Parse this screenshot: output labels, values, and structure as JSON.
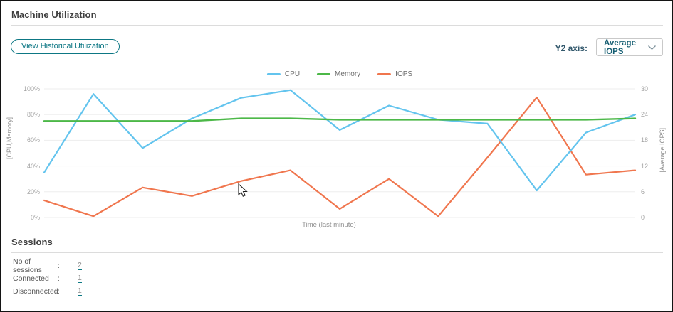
{
  "header": {
    "title": "Machine Utilization"
  },
  "toolbar": {
    "view_historical_label": "View Historical Utilization"
  },
  "y2_control": {
    "label": "Y2 axis:",
    "selected_option": "Average IOPS"
  },
  "chart_data": {
    "type": "line",
    "x": [
      1,
      2,
      3,
      4,
      5,
      6,
      7,
      8,
      9,
      10,
      11,
      12,
      13
    ],
    "xlabel": "Time (last minute)",
    "y1label": "[CPU,Memory]",
    "y2label": "[Average IOPS]",
    "y1lim": [
      0,
      100
    ],
    "y2lim": [
      0,
      30
    ],
    "y1_ticks": [
      "100%",
      "80%",
      "60%",
      "40%",
      "20%",
      "0%"
    ],
    "y2_ticks": [
      "30",
      "24",
      "18",
      "12",
      "6",
      "0"
    ],
    "grid": "horizontal",
    "legend_position": "top-center",
    "series": [
      {
        "name": "CPU",
        "axis": "y1",
        "color": "#63c4ee",
        "values": [
          35,
          96,
          54,
          77,
          93,
          99,
          68,
          87,
          76,
          73,
          21,
          66,
          80
        ]
      },
      {
        "name": "Memory",
        "axis": "y1",
        "color": "#4cb848",
        "values": [
          75,
          75,
          75,
          75,
          77,
          77,
          76,
          76,
          76,
          76,
          76,
          76,
          77
        ]
      },
      {
        "name": "IOPS",
        "axis": "y2",
        "color": "#f0764e",
        "values": [
          4,
          0.3,
          7,
          5,
          8.5,
          11,
          2,
          9,
          0.3,
          14,
          28,
          10,
          11
        ]
      }
    ]
  },
  "sessions": {
    "title": "Sessions",
    "rows": [
      {
        "label": "No of sessions",
        "separator": ":",
        "value": "2"
      },
      {
        "label": "Connected",
        "separator": ":",
        "value": "1"
      },
      {
        "label": "Disconnected",
        "separator": ":",
        "value": "1"
      }
    ]
  },
  "colors": {
    "accent_teal": "#0d7784",
    "link_underline": "#0e7a85",
    "gridline": "#ededed"
  }
}
